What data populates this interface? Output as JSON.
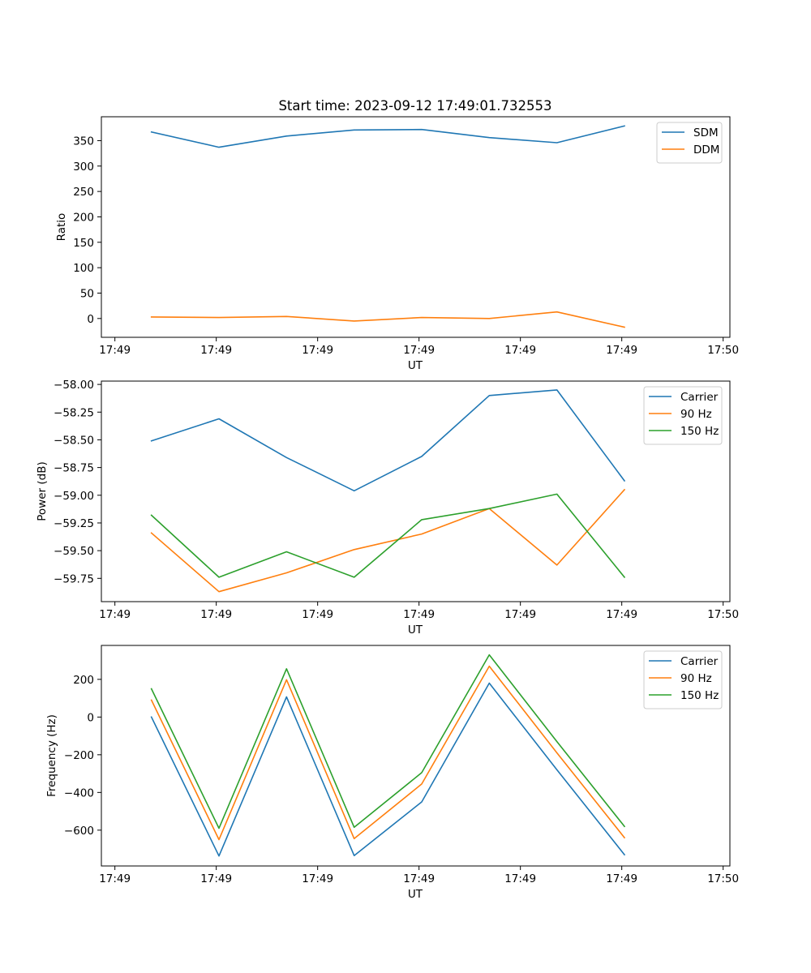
{
  "title": "Start time: 2023-09-12 17:49:01.732553",
  "chart_data": [
    {
      "type": "line",
      "ylabel": "Ratio",
      "xlabel": "UT",
      "xlim": [
        -0.2,
        9.1
      ],
      "x": [
        0.54,
        1.54,
        2.54,
        3.54,
        4.54,
        5.54,
        6.54,
        7.54
      ],
      "xticks": [
        0,
        1.5,
        3,
        4.5,
        6,
        7.5,
        9
      ],
      "xtick_labels": [
        "17:49",
        "17:49",
        "17:49",
        "17:49",
        "17:49",
        "17:49",
        "17:50"
      ],
      "ylim": [
        -37,
        397
      ],
      "yticks": [
        0,
        50,
        100,
        150,
        200,
        250,
        300,
        350
      ],
      "ytick_labels": [
        "0",
        "50",
        "100",
        "150",
        "200",
        "250",
        "300",
        "350"
      ],
      "legend": "top-right",
      "series": [
        {
          "name": "SDM",
          "color": "#1f77b4",
          "values": [
            367,
            337,
            359,
            371,
            372,
            356,
            346,
            379
          ]
        },
        {
          "name": "DDM",
          "color": "#ff7f0e",
          "values": [
            3,
            2,
            4,
            -5,
            2,
            0,
            13,
            -17
          ]
        }
      ]
    },
    {
      "type": "line",
      "ylabel": "Power (dB)",
      "xlabel": "UT",
      "xlim": [
        -0.2,
        9.1
      ],
      "x": [
        0.54,
        1.54,
        2.54,
        3.54,
        4.54,
        5.54,
        6.54,
        7.54
      ],
      "xticks": [
        0,
        1.5,
        3,
        4.5,
        6,
        7.5,
        9
      ],
      "xtick_labels": [
        "17:49",
        "17:49",
        "17:49",
        "17:49",
        "17:49",
        "17:49",
        "17:50"
      ],
      "ylim": [
        -59.96,
        -57.97
      ],
      "yticks": [
        -59.75,
        -59.5,
        -59.25,
        -59.0,
        -58.75,
        -58.5,
        -58.25,
        -58.0
      ],
      "ytick_labels": [
        "−59.75",
        "−59.50",
        "−59.25",
        "−59.00",
        "−58.75",
        "−58.50",
        "−58.25",
        "−58.00"
      ],
      "legend": "top-right",
      "series": [
        {
          "name": "Carrier",
          "color": "#1f77b4",
          "values": [
            -58.51,
            -58.31,
            -58.66,
            -58.96,
            -58.65,
            -58.1,
            -58.05,
            -58.87
          ]
        },
        {
          "name": "90 Hz",
          "color": "#ff7f0e",
          "values": [
            -59.34,
            -59.87,
            -59.7,
            -59.49,
            -59.35,
            -59.12,
            -59.63,
            -58.95
          ]
        },
        {
          "name": "150 Hz",
          "color": "#2ca02c",
          "values": [
            -59.18,
            -59.74,
            -59.51,
            -59.74,
            -59.22,
            -59.12,
            -58.99,
            -59.74
          ]
        }
      ]
    },
    {
      "type": "line",
      "ylabel": "Frequency (Hz)",
      "xlabel": "UT",
      "xlim": [
        -0.2,
        9.1
      ],
      "x": [
        0.54,
        1.54,
        2.54,
        3.54,
        4.54,
        5.54,
        6.54,
        7.54
      ],
      "xticks": [
        0,
        1.5,
        3,
        4.5,
        6,
        7.5,
        9
      ],
      "xtick_labels": [
        "17:49",
        "17:49",
        "17:49",
        "17:49",
        "17:49",
        "17:49",
        "17:50"
      ],
      "ylim": [
        -790,
        380
      ],
      "yticks": [
        -600,
        -400,
        -200,
        0,
        200
      ],
      "ytick_labels": [
        "−600",
        "−400",
        "−200",
        "0",
        "200"
      ],
      "legend": "top-right",
      "series": [
        {
          "name": "Carrier",
          "color": "#1f77b4",
          "values": [
            0,
            -737,
            107,
            -735,
            -450,
            180,
            -280,
            -730
          ]
        },
        {
          "name": "90 Hz",
          "color": "#ff7f0e",
          "values": [
            90,
            -650,
            198,
            -645,
            -355,
            270,
            -190,
            -640
          ]
        },
        {
          "name": "150 Hz",
          "color": "#2ca02c",
          "values": [
            150,
            -590,
            256,
            -585,
            -295,
            330,
            -130,
            -580
          ]
        }
      ]
    }
  ]
}
